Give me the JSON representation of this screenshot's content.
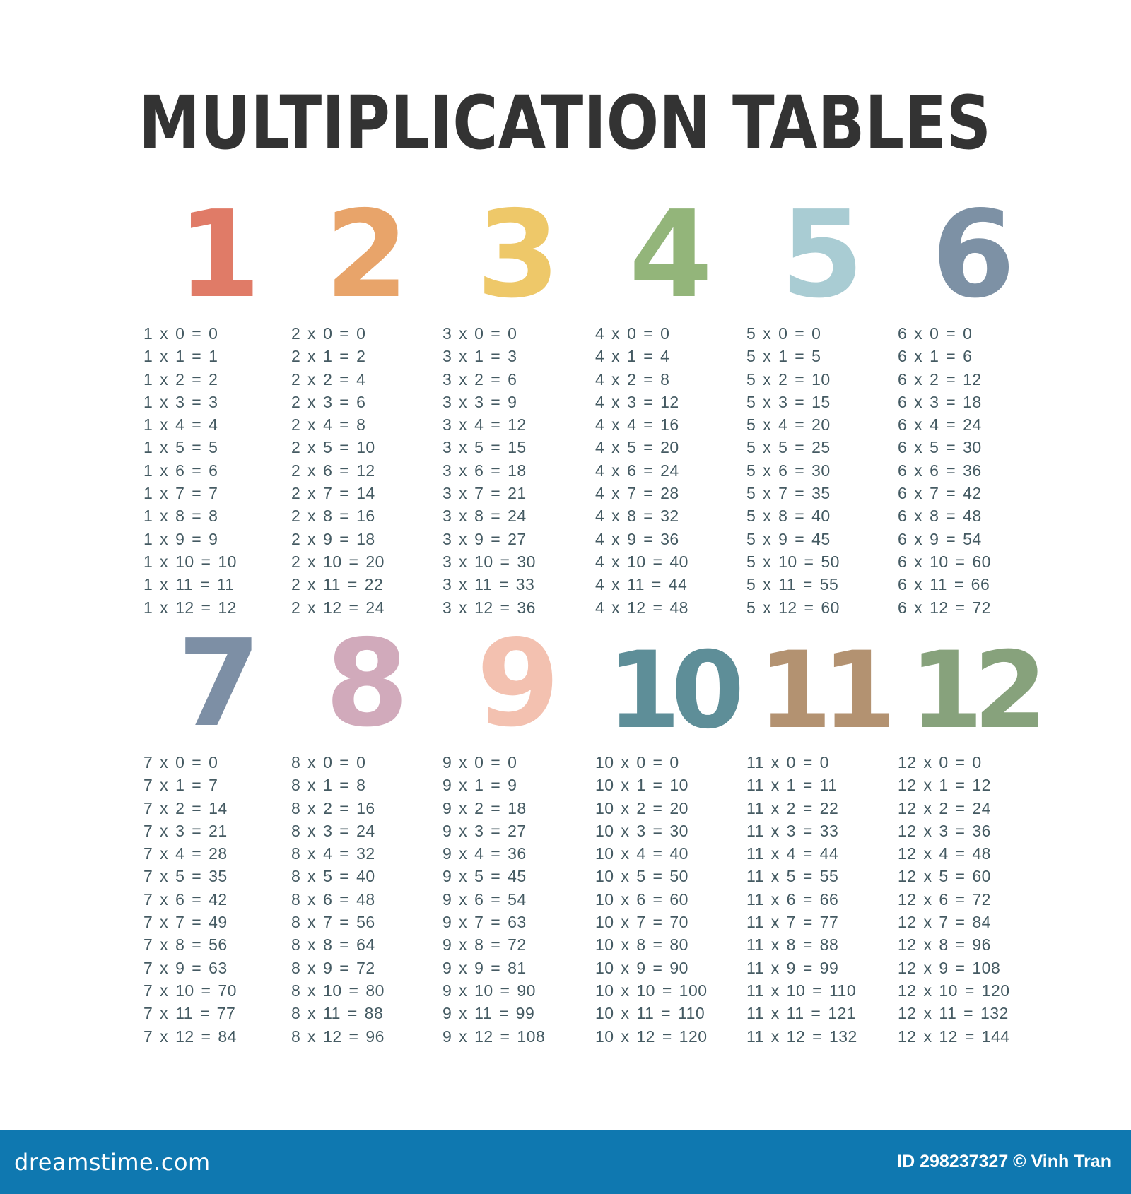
{
  "title": "MULTIPLICATION TABLES",
  "title_color": "#333333",
  "equation_color": "#445a62",
  "tables": [
    {
      "number": "1",
      "color": "#e07b67",
      "equations": [
        "1 x 0 = 0",
        "1 x 1 = 1",
        "1 x 2 = 2",
        "1 x 3 = 3",
        "1 x 4 = 4",
        "1 x 5 = 5",
        "1 x 6 = 6",
        "1 x 7 = 7",
        "1 x 8 = 8",
        "1 x 9 = 9",
        "1 x 10 = 10",
        "1 x 11 = 11",
        "1 x 12 = 12"
      ]
    },
    {
      "number": "2",
      "color": "#e8a46a",
      "equations": [
        "2 x 0 = 0",
        "2 x 1 = 2",
        "2 x 2 = 4",
        "2 x 3 = 6",
        "2 x 4 = 8",
        "2 x 5 = 10",
        "2 x 6 = 12",
        "2 x 7 = 14",
        "2 x 8 = 16",
        "2 x 9 = 18",
        "2 x 10 = 20",
        "2 x 11 = 22",
        "2 x 12 = 24"
      ]
    },
    {
      "number": "3",
      "color": "#eec869",
      "equations": [
        "3 x 0 = 0",
        "3 x 1 = 3",
        "3 x 2 = 6",
        "3 x 3 = 9",
        "3 x 4 = 12",
        "3 x 5 = 15",
        "3 x 6 = 18",
        "3 x 7 = 21",
        "3 x 8 = 24",
        "3 x 9 = 27",
        "3 x 10 = 30",
        "3 x 11 = 33",
        "3 x 12 = 36"
      ]
    },
    {
      "number": "4",
      "color": "#93b57a",
      "equations": [
        "4 x 0 = 0",
        "4 x 1 = 4",
        "4 x 2 = 8",
        "4 x 3 = 12",
        "4 x 4 = 16",
        "4 x 5 = 20",
        "4 x 6 = 24",
        "4 x 7 = 28",
        "4 x 8 = 32",
        "4 x 9 = 36",
        "4 x 10 = 40",
        "4 x 11 = 44",
        "4 x 12 = 48"
      ]
    },
    {
      "number": "5",
      "color": "#a9ccd3",
      "equations": [
        "5 x 0 = 0",
        "5 x 1 = 5",
        "5 x 2 = 10",
        "5 x 3 = 15",
        "5 x 4 = 20",
        "5 x 5 = 25",
        "5 x 6 = 30",
        "5 x 7 = 35",
        "5 x 8 = 40",
        "5 x 9 = 45",
        "5 x 10 = 50",
        "5 x 11 = 55",
        "5 x 12 = 60"
      ]
    },
    {
      "number": "6",
      "color": "#7d91a5",
      "equations": [
        "6 x 0 = 0",
        "6 x 1 = 6",
        "6 x 2 = 12",
        "6 x 3 = 18",
        "6 x 4 = 24",
        "6 x 5 = 30",
        "6 x 6 = 36",
        "6 x 7 = 42",
        "6 x 8 = 48",
        "6 x 9 = 54",
        "6 x 10 = 60",
        "6 x 11 = 66",
        "6 x 12 = 72"
      ]
    },
    {
      "number": "7",
      "color": "#7d8fa5",
      "equations": [
        "7 x 0 = 0",
        "7 x 1 = 7",
        "7 x 2 = 14",
        "7 x 3 = 21",
        "7 x 4 = 28",
        "7 x 5 = 35",
        "7 x 6 = 42",
        "7 x 7 = 49",
        "7 x 8 = 56",
        "7 x 9 = 63",
        "7 x 10 = 70",
        "7 x 11 = 77",
        "7 x 12 = 84"
      ]
    },
    {
      "number": "8",
      "color": "#d1aabb",
      "equations": [
        "8 x 0 = 0",
        "8 x 1 = 8",
        "8 x 2 = 16",
        "8 x 3 = 24",
        "8 x 4 = 32",
        "8 x 5 = 40",
        "8 x 6 = 48",
        "8 x 7 = 56",
        "8 x 8 = 64",
        "8 x 9 = 72",
        "8 x 10 = 80",
        "8 x 11 = 88",
        "8 x 12 = 96"
      ]
    },
    {
      "number": "9",
      "color": "#f3c1b0",
      "equations": [
        "9 x 0 = 0",
        "9 x 1 = 9",
        "9 x 2 = 18",
        "9 x 3 = 27",
        "9 x 4 = 36",
        "9 x 5 = 45",
        "9 x 6 = 54",
        "9 x 7 = 63",
        "9 x 8 = 72",
        "9 x 9 = 81",
        "9 x 10 = 90",
        "9 x 11 = 99",
        "9 x 12 = 108"
      ]
    },
    {
      "number": "10",
      "color": "#5e8e98",
      "equations": [
        "10 x 0 = 0",
        "10 x 1 = 10",
        "10 x 2 = 20",
        "10 x 3 = 30",
        "10 x 4 = 40",
        "10 x 5 = 50",
        "10 x 6 = 60",
        "10 x 7 = 70",
        "10 x 8 = 80",
        "10 x 9 = 90",
        "10 x 10 = 100",
        "10 x 11 = 110",
        "10 x 12 = 120"
      ]
    },
    {
      "number": "11",
      "color": "#b39271",
      "equations": [
        "11 x 0 = 0",
        "11 x 1 = 11",
        "11 x 2 = 22",
        "11 x 3 = 33",
        "11 x 4 = 44",
        "11 x 5 = 55",
        "11 x 6 = 66",
        "11 x 7 = 77",
        "11 x 8 = 88",
        "11 x 9 = 99",
        "11 x 10 = 110",
        "11 x 11 = 121",
        "11 x 12 = 132"
      ]
    },
    {
      "number": "12",
      "color": "#87a27c",
      "equations": [
        "12 x 0 = 0",
        "12 x 1 = 12",
        "12 x 2 = 24",
        "12 x 3 = 36",
        "12 x 4 = 48",
        "12 x 5 = 60",
        "12 x 6 = 72",
        "12 x 7 = 84",
        "12 x 8 = 96",
        "12 x 9 = 108",
        "12 x 10 = 120",
        "12 x 11 = 132",
        "12 x 12 = 144"
      ]
    }
  ],
  "footer": {
    "brand": "dreamstime.com",
    "credit": "ID 298237327 © Vinh Tran",
    "background": "#0f78b0"
  }
}
